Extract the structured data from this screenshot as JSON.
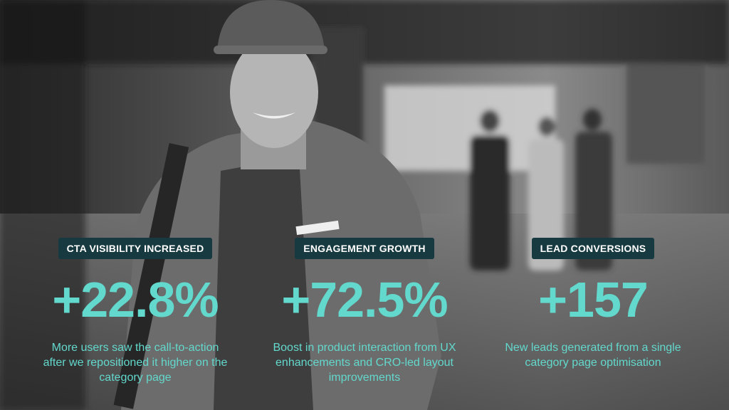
{
  "stats": [
    {
      "label": "CTA VISIBILITY INCREASED",
      "value": "+22.8%",
      "description": "More users saw the call-to-action after we repositioned it higher on the category page"
    },
    {
      "label": "ENGAGEMENT GROWTH",
      "value": "+72.5%",
      "description": "Boost in product interaction from UX enhancements and CRO-led layout improvements"
    },
    {
      "label": "LEAD CONVERSIONS",
      "value": "+157",
      "description": "New leads generated from a single category page optimisation"
    }
  ]
}
